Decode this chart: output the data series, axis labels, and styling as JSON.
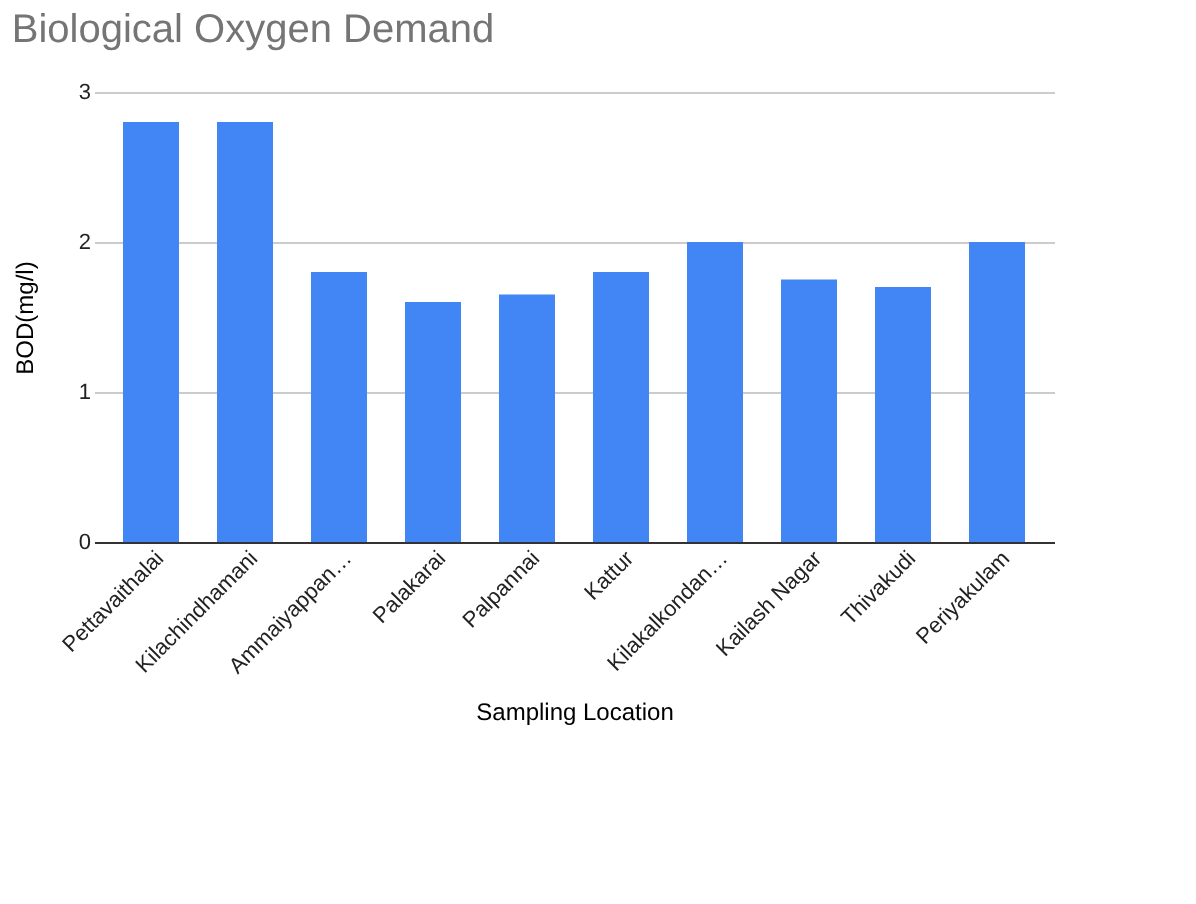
{
  "chart_data": {
    "type": "bar",
    "title": "Biological Oxygen Demand",
    "xlabel": "Sampling Location",
    "ylabel": "BOD(mg/l)",
    "categories": [
      "Pettavaithalai",
      "Kilachindhamani",
      "Ammaiyappan…",
      "Palakarai",
      "Palpannai",
      "Kattur",
      "Kilakalkondan…",
      "Kailash Nagar",
      "Thivakudi",
      "Periyakulam"
    ],
    "values": [
      2.8,
      2.8,
      1.8,
      1.6,
      1.65,
      1.8,
      2.0,
      1.75,
      1.7,
      2.0
    ],
    "color": "#4285f4",
    "ylim": [
      0,
      3
    ],
    "yticks": [
      0,
      1,
      2,
      3
    ],
    "grid": "y"
  }
}
